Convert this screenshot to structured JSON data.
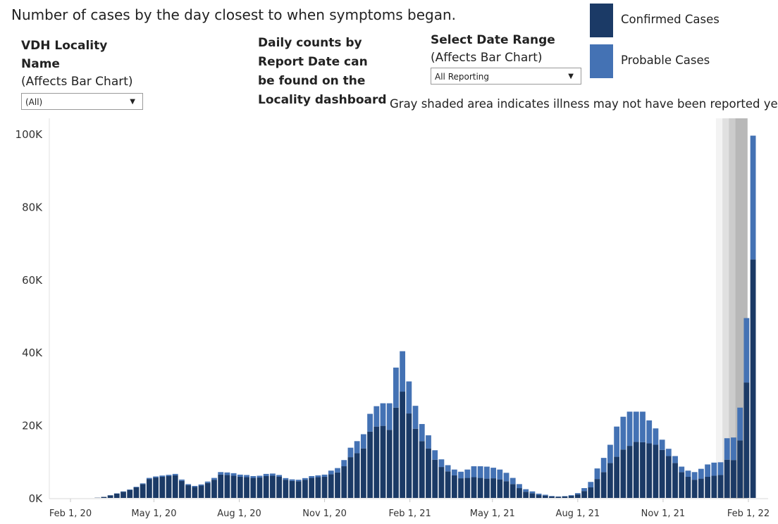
{
  "header": {
    "subtitle": "Number of cases by the day closest to when symptoms began."
  },
  "filters": {
    "locality": {
      "label": "VDH Locality Name",
      "sub": "(Affects Bar Chart)",
      "value": "(All)"
    },
    "date_range": {
      "label": "Select Date Range",
      "sub": "(Affects Bar Chart)",
      "value": "All Reporting"
    }
  },
  "note": {
    "lines": [
      "Daily counts by",
      "Report Date can",
      "be found on the",
      "Locality dashboard"
    ]
  },
  "gray_note": "Gray shaded area indicates illness may not have been reported yet",
  "legend": [
    {
      "label": "Confirmed Cases",
      "color": "#1b3a66"
    },
    {
      "label": "Probable Cases",
      "color": "#4472b4"
    }
  ],
  "chart_data": {
    "type": "bar",
    "stacked": true,
    "x_axis": "weekly dates",
    "x_start": "2020-02-01",
    "x_end": "2022-02-01",
    "bar_interval_days": 7,
    "x_ticks": [
      "Feb 1, 20",
      "May 1, 20",
      "Aug 1, 20",
      "Nov 1, 20",
      "Feb 1, 21",
      "May 1, 21",
      "Aug 1, 21",
      "Nov 1, 21",
      "Feb 1, 22"
    ],
    "y_ticks": [
      "0K",
      "20K",
      "40K",
      "60K",
      "80K",
      "100K"
    ],
    "ylim": [
      0,
      100000
    ],
    "grid": false,
    "legend_position": "top-right",
    "bars_start_date": "2020-03-01",
    "series": [
      {
        "name": "Confirmed Cases",
        "color": "#1b3a66",
        "values": [
          60,
          280,
          700,
          1200,
          1700,
          2200,
          2900,
          3800,
          5200,
          5600,
          5800,
          6000,
          6200,
          4700,
          3500,
          3000,
          3400,
          4100,
          5000,
          6400,
          6300,
          6100,
          5800,
          5700,
          5500,
          5600,
          6000,
          6100,
          5800,
          5000,
          4700,
          4600,
          5000,
          5500,
          5700,
          5800,
          6500,
          7000,
          8700,
          11200,
          12300,
          13600,
          18200,
          19600,
          19800,
          18700,
          24800,
          29200,
          23200,
          19000,
          15600,
          13600,
          10500,
          8500,
          7300,
          6200,
          5400,
          5500,
          5700,
          5500,
          5300,
          5400,
          5100,
          4600,
          3800,
          2700,
          1700,
          1300,
          850,
          650,
          420,
          330,
          410,
          570,
          1000,
          1900,
          2900,
          5200,
          7100,
          9600,
          11300,
          13300,
          14300,
          15400,
          15300,
          15000,
          14600,
          13200,
          11500,
          9600,
          7100,
          5800,
          5000,
          5300,
          5800,
          6100,
          6300,
          10500,
          10400,
          15800,
          31700,
          65500
        ]
      },
      {
        "name": "Probable Cases",
        "color": "#4472b4",
        "values": [
          0,
          0,
          40,
          70,
          100,
          120,
          150,
          200,
          300,
          300,
          350,
          350,
          400,
          350,
          300,
          300,
          300,
          400,
          500,
          700,
          700,
          700,
          600,
          600,
          500,
          500,
          600,
          600,
          500,
          450,
          400,
          400,
          450,
          500,
          500,
          600,
          1000,
          1200,
          1700,
          2600,
          3300,
          3900,
          4900,
          5600,
          6200,
          7300,
          11000,
          11100,
          8800,
          6300,
          4700,
          3600,
          2600,
          2100,
          1700,
          1600,
          1800,
          2300,
          3000,
          3200,
          3300,
          2900,
          2700,
          2300,
          1700,
          1100,
          700,
          500,
          330,
          230,
          120,
          80,
          100,
          180,
          330,
          800,
          1500,
          2900,
          3900,
          5000,
          8300,
          9000,
          9400,
          8300,
          8400,
          6300,
          4500,
          2800,
          2000,
          1900,
          1500,
          1700,
          2100,
          2700,
          3400,
          3600,
          3500,
          5900,
          6200,
          9000,
          17700,
          34000
        ]
      }
    ],
    "shaded_regions": [
      {
        "start": "2021-12-28",
        "end": "2022-01-31",
        "color": "#f3f3f3"
      },
      {
        "start": "2022-01-04",
        "end": "2022-01-31",
        "color": "#e0e0e0"
      },
      {
        "start": "2022-01-11",
        "end": "2022-01-31",
        "color": "#cccccc"
      },
      {
        "start": "2022-01-18",
        "end": "2022-01-31",
        "color": "#b8b8b8"
      }
    ]
  }
}
